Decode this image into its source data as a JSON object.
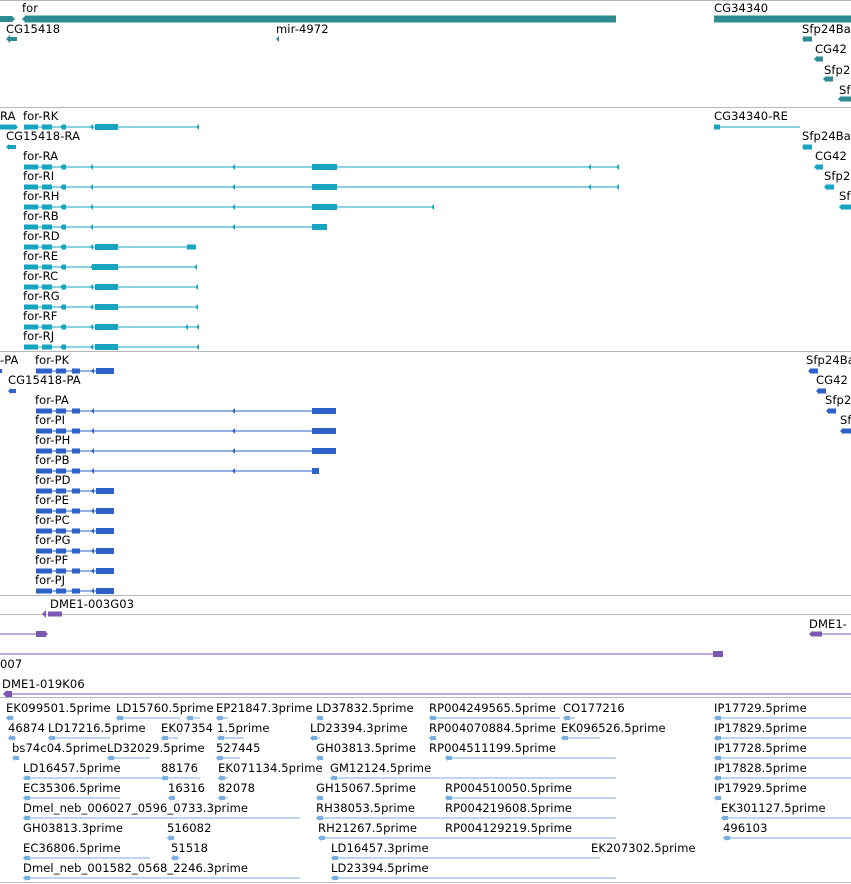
{
  "colors": {
    "gene": "#2e8b92",
    "transcript_cyan": "#16a4c0",
    "transcript_blue": "#2f62c8",
    "clone": "#7d58b0",
    "est": "#79aee0",
    "divider": "#b8b8b8"
  },
  "gene_track": {
    "gene_labels": [
      "for",
      "CG34340",
      "CG15418",
      "mir-4972",
      "Sfp24Ba",
      "CG42",
      "Sfp2",
      "Sf"
    ]
  },
  "transcript_track_cyan": {
    "labels": [
      "RA",
      "for-RK",
      "CG34340-RE",
      "CG15418-RA",
      "Sfp24Ba",
      "for-RA",
      "CG42",
      "for-RI",
      "Sfp2",
      "for-RH",
      "Sf",
      "for-RB",
      "for-RD",
      "for-RE",
      "for-RC",
      "for-RG",
      "for-RF",
      "for-RJ"
    ]
  },
  "transcript_track_blue": {
    "labels": [
      "-PA",
      "for-PK",
      "Sfp24Ba",
      "CG15418-PA",
      "CG42",
      "for-PA",
      "Sfp2",
      "for-PI",
      "Sf",
      "for-PH",
      "for-PB",
      "for-PD",
      "for-PE",
      "for-PC",
      "for-PG",
      "for-PF",
      "for-PJ"
    ]
  },
  "clone_track": {
    "labels": [
      "DME1-003G03",
      "DME1-",
      "007",
      "DME1-019K06"
    ]
  },
  "est_track": {
    "labels": [
      "EK099501.5prime",
      "LD15760.5prime",
      "EP21847.3prime",
      "LD37832.5prime",
      "RP004249565.5prime",
      "CO177216",
      "IP17729.5prime",
      "46874",
      "LD17216.5prime",
      "EK07354",
      "1.5prime",
      "LD23394.3prime",
      "RP004070884.5prime",
      "EK096526.5prime",
      "IP17829.5prime",
      "bs74c04.5prime",
      "LD32029.5prime",
      "527445",
      "GH03813.5prime",
      "RP004511199.5prime",
      "IP17728.5prime",
      "LD16457.5prime",
      "88176",
      "EK071134.5prime",
      "GM12124.5prime",
      "IP17828.5prime",
      "EC35306.5prime",
      "16316",
      "82078",
      "GH15067.5prime",
      "RP004510050.5prime",
      "IP17929.5prime",
      "Dmel_neb_006027_0596_0733.3prime",
      "RH38053.5prime",
      "RP004219608.5prime",
      "EK301127.5prime",
      "GH03813.3prime",
      "516082",
      "RH21267.5prime",
      "RP004129219.5prime",
      "496103",
      "EC36806.5prime",
      "51518",
      "LD16457.3prime",
      "EK207302.5prime",
      "Dmel_neb_001582_0568_2246.3prime",
      "LD23394.5prime"
    ]
  }
}
